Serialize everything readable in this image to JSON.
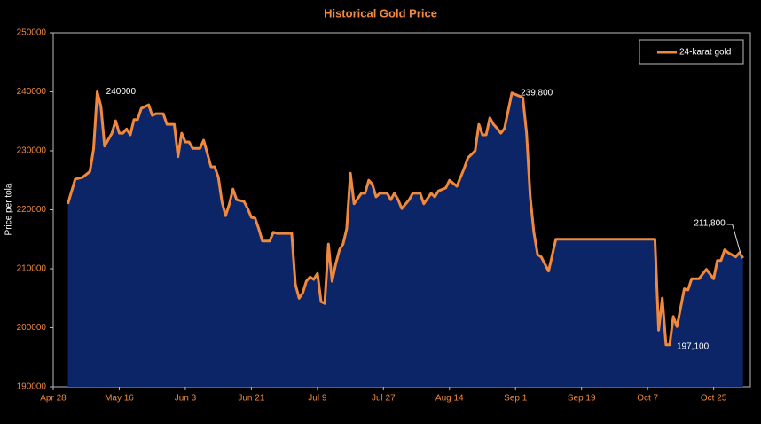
{
  "chart_data": {
    "type": "area",
    "title": "Historical Gold Price",
    "ylabel": "Price per tola",
    "legend": "upper right",
    "xlim": [
      "Apr 28",
      "Nov 4"
    ],
    "xticks": [
      "Apr 28",
      "May 16",
      "Jun 3",
      "Jun 21",
      "Jul 9",
      "Jul 27",
      "Aug 14",
      "Sep 1",
      "Sep 19",
      "Oct 7",
      "Oct 25"
    ],
    "ylim": [
      190000,
      250000
    ],
    "yticks": [
      190000,
      200000,
      210000,
      220000,
      230000,
      240000,
      250000
    ],
    "x": [
      "May 2",
      "May 4",
      "May 6",
      "May 8",
      "May 9",
      "May 10",
      "May 11",
      "May 12",
      "May 14",
      "May 15",
      "May 16",
      "May 17",
      "May 18",
      "May 19",
      "May 20",
      "May 21",
      "May 22",
      "May 23",
      "May 24",
      "May 25",
      "May 26",
      "May 28",
      "May 29",
      "May 31",
      "Jun 1",
      "Jun 2",
      "Jun 3",
      "Jun 4",
      "Jun 5",
      "Jun 7",
      "Jun 8",
      "Jun 10",
      "Jun 11",
      "Jun 12",
      "Jun 13",
      "Jun 14",
      "Jun 15",
      "Jun 16",
      "Jun 17",
      "Jun 19",
      "Jun 20",
      "Jun 21",
      "Jun 22",
      "Jun 23",
      "Jun 24",
      "Jun 26",
      "Jun 27",
      "Jun 28",
      "Jul 2",
      "Jul 3",
      "Jul 4",
      "Jul 5",
      "Jul 6",
      "Jul 7",
      "Jul 8",
      "Jul 9",
      "Jul 10",
      "Jul 11",
      "Jul 12",
      "Jul 13",
      "Jul 14",
      "Jul 15",
      "Jul 16",
      "Jul 17",
      "Jul 18",
      "Jul 19",
      "Jul 21",
      "Jul 22",
      "Jul 23",
      "Jul 24",
      "Jul 25",
      "Jul 26",
      "Jul 28",
      "Jul 29",
      "Jul 30",
      "Jul 31",
      "Aug 1",
      "Aug 3",
      "Aug 4",
      "Aug 6",
      "Aug 7",
      "Aug 9",
      "Aug 10",
      "Aug 11",
      "Aug 13",
      "Aug 14",
      "Aug 16",
      "Aug 17",
      "Aug 18",
      "Aug 19",
      "Aug 21",
      "Aug 22",
      "Aug 23",
      "Aug 24",
      "Aug 25",
      "Aug 26",
      "Aug 27",
      "Aug 28",
      "Aug 29",
      "Aug 31",
      "Sep 2",
      "Sep 3",
      "Sep 4",
      "Sep 5",
      "Sep 6",
      "Sep 7",
      "Sep 8",
      "Sep 10",
      "Sep 12",
      "Oct 9",
      "Oct 10",
      "Oct 11",
      "Oct 12",
      "Oct 13",
      "Oct 14",
      "Oct 15",
      "Oct 17",
      "Oct 18",
      "Oct 19",
      "Oct 21",
      "Oct 22",
      "Oct 23",
      "Oct 25",
      "Oct 26",
      "Oct 27",
      "Oct 28",
      "Oct 29",
      "Oct 31",
      "Nov 1",
      "Nov 2"
    ],
    "series": [
      {
        "name": "24-karat gold",
        "color": "#f0883e",
        "fill": "#0b2566",
        "values": [
          221000,
          225200,
          225500,
          226500,
          230300,
          240000,
          237500,
          230800,
          233000,
          235100,
          233000,
          233000,
          233700,
          232700,
          235300,
          235300,
          237200,
          237500,
          237800,
          236000,
          236300,
          236300,
          234500,
          234500,
          229000,
          233000,
          231500,
          231500,
          230400,
          230400,
          231800,
          227300,
          227300,
          225500,
          221300,
          219000,
          221000,
          223500,
          221700,
          221400,
          220200,
          218700,
          218600,
          216800,
          214700,
          214700,
          216200,
          216000,
          216000,
          207400,
          205000,
          205900,
          207900,
          208600,
          208200,
          209200,
          204400,
          204100,
          214200,
          207900,
          210800,
          213200,
          214200,
          216800,
          226200,
          221000,
          222800,
          222800,
          225000,
          224300,
          222200,
          222800,
          222800,
          221700,
          222800,
          221700,
          220200,
          221700,
          222800,
          222800,
          221000,
          222800,
          222200,
          223200,
          223700,
          225000,
          224000,
          225500,
          227000,
          228800,
          230000,
          234500,
          232700,
          232700,
          235600,
          234500,
          233800,
          233000,
          233800,
          239800,
          239300,
          239000,
          233000,
          222200,
          216200,
          212400,
          212000,
          209600,
          215000,
          215000,
          199600,
          205000,
          197100,
          197100,
          201900,
          200200,
          206600,
          206400,
          208300,
          208300,
          209100,
          209900,
          208300,
          211400,
          211400,
          213200,
          212700,
          212000,
          212700,
          211800
        ],
        "value_labels": [
          null,
          null,
          null,
          null,
          null,
          "240000",
          null,
          null,
          null,
          null,
          null,
          null,
          null,
          null,
          null,
          null,
          null,
          null,
          null,
          null,
          null,
          null,
          null,
          null,
          null,
          null,
          null,
          null,
          null,
          null,
          null,
          null,
          null,
          null,
          null,
          null,
          null,
          null,
          null,
          null,
          null,
          null,
          null,
          null,
          null,
          null,
          null,
          null,
          null,
          null,
          null,
          null,
          null,
          null,
          null,
          null,
          null,
          null,
          null,
          null,
          null,
          null,
          null,
          null,
          null,
          null,
          null,
          null,
          null,
          null,
          null,
          null,
          null,
          null,
          null,
          null,
          null,
          null,
          null,
          null,
          null,
          null,
          null,
          null,
          null,
          null,
          null,
          null,
          null,
          null,
          null,
          null,
          null,
          null,
          null,
          null,
          null,
          null,
          null,
          "239,800",
          null,
          null,
          null,
          null,
          null,
          null,
          null,
          null,
          null,
          null,
          null,
          null,
          null,
          "197,100",
          null,
          null,
          null,
          null,
          null,
          null,
          null,
          null,
          null,
          null,
          null,
          null,
          null,
          null,
          null,
          "211,800"
        ]
      }
    ]
  }
}
